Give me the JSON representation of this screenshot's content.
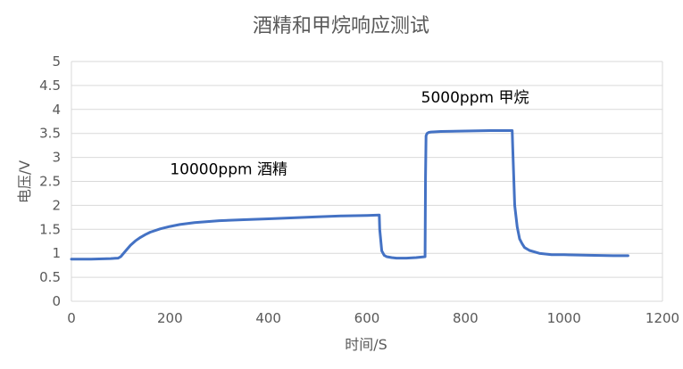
{
  "chart_data": {
    "type": "line",
    "title": "酒精和甲烷响应测试",
    "xlabel": "时间/S",
    "ylabel": "电压/V",
    "xlim": [
      0,
      1200
    ],
    "ylim": [
      0,
      5
    ],
    "x_ticks": [
      0,
      200,
      400,
      600,
      800,
      1000,
      1200
    ],
    "y_ticks": [
      0,
      0.5,
      1,
      1.5,
      2,
      2.5,
      3,
      3.5,
      4,
      4.5,
      5
    ],
    "grid": "horizontal",
    "legend": "none",
    "series": [
      {
        "color": "#4472C4",
        "x": [
          0,
          40,
          80,
          95,
          100,
          110,
          120,
          130,
          140,
          150,
          160,
          180,
          200,
          220,
          250,
          300,
          350,
          400,
          450,
          500,
          550,
          600,
          625,
          626,
          630,
          635,
          640,
          650,
          660,
          680,
          700,
          718,
          719,
          720,
          722,
          725,
          730,
          750,
          800,
          850,
          895,
          896,
          898,
          900,
          905,
          910,
          915,
          920,
          930,
          950,
          975,
          1000,
          1050,
          1100,
          1130
        ],
        "y": [
          0.88,
          0.88,
          0.89,
          0.9,
          0.93,
          1.05,
          1.17,
          1.26,
          1.33,
          1.39,
          1.44,
          1.51,
          1.56,
          1.6,
          1.64,
          1.68,
          1.7,
          1.72,
          1.74,
          1.76,
          1.78,
          1.79,
          1.8,
          1.5,
          1.05,
          0.96,
          0.93,
          0.91,
          0.9,
          0.9,
          0.91,
          0.93,
          2.6,
          3.45,
          3.5,
          3.52,
          3.53,
          3.54,
          3.55,
          3.56,
          3.56,
          3.2,
          2.6,
          2.0,
          1.55,
          1.3,
          1.2,
          1.12,
          1.06,
          1.0,
          0.97,
          0.97,
          0.96,
          0.95,
          0.95
        ]
      }
    ],
    "annotations": [
      {
        "text": "10000ppm  酒精",
        "x": 200,
        "y": 2.5
      },
      {
        "text": "5000ppm  甲烷",
        "x": 710,
        "y": 4.0
      }
    ]
  }
}
